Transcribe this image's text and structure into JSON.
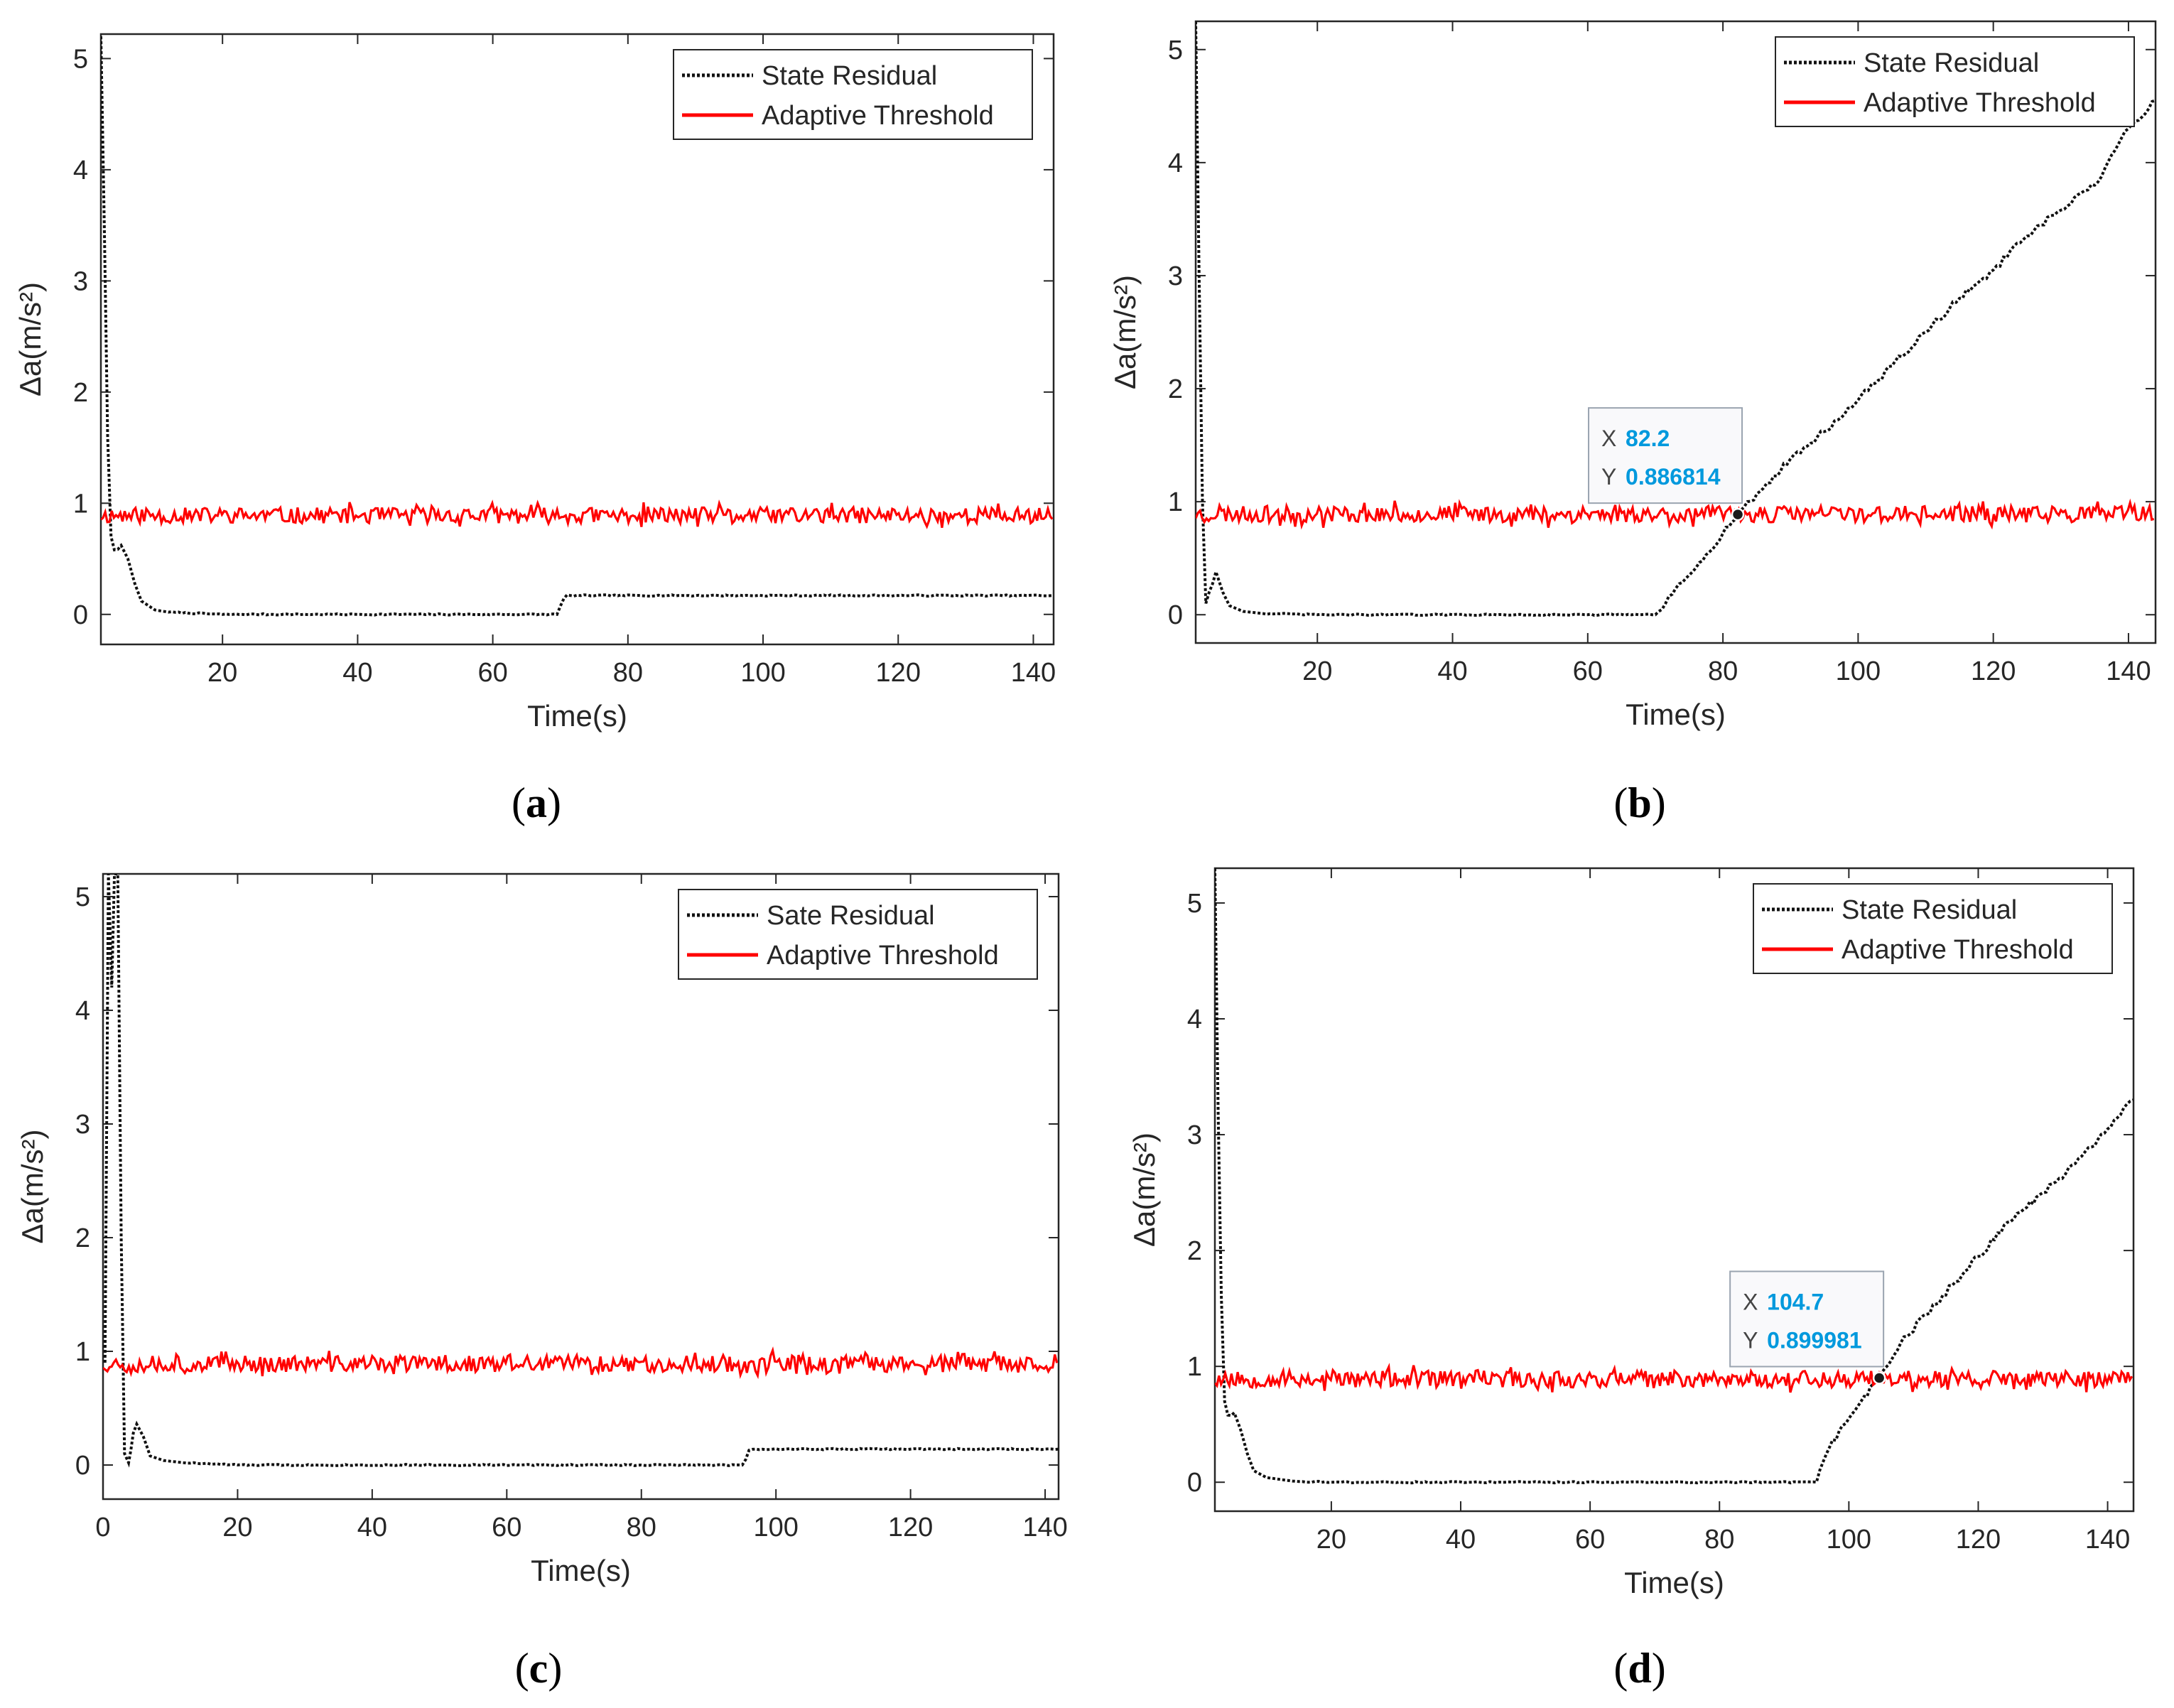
{
  "colors": {
    "residual": "#111111",
    "threshold": "#ff0000",
    "axis": "#262626",
    "datatip_value": "#0099dd"
  },
  "chart_data": [
    {
      "type": "line",
      "panel": "a",
      "caption": "a",
      "xlabel": "Time(s)",
      "ylabel": "Δa(m/s²)",
      "xlim": [
        2,
        143
      ],
      "ylim": [
        -0.27,
        5.22
      ],
      "xticks": [
        20,
        40,
        60,
        80,
        100,
        120,
        140
      ],
      "yticks": [
        0,
        1,
        2,
        3,
        4,
        5
      ],
      "legend_position": "top-right",
      "series": [
        {
          "name": "State Residual",
          "style": "dotted-black",
          "points": [
            [
              2,
              5.2
            ],
            [
              2.5,
              3.5
            ],
            [
              3,
              1.6
            ],
            [
              3.5,
              0.7
            ],
            [
              4,
              0.58
            ],
            [
              5,
              0.62
            ],
            [
              6,
              0.5
            ],
            [
              7,
              0.28
            ],
            [
              8,
              0.12
            ],
            [
              10,
              0.04
            ],
            [
              12,
              0.02
            ],
            [
              20,
              0.0
            ],
            [
              40,
              0.0
            ],
            [
              60,
              0.0
            ],
            [
              69.5,
              0.0
            ],
            [
              70.5,
              0.14
            ],
            [
              71.5,
              0.17
            ],
            [
              90,
              0.17
            ],
            [
              120,
              0.17
            ],
            [
              143,
              0.17
            ]
          ]
        },
        {
          "name": "Adaptive Threshold",
          "style": "noisy-red",
          "mean": 0.89,
          "noise": 0.12,
          "seed": 11
        }
      ]
    },
    {
      "type": "line",
      "panel": "b",
      "caption": "b",
      "xlabel": "Time(s)",
      "ylabel": "Δa(m/s²)",
      "xlim": [
        2,
        144
      ],
      "ylim": [
        -0.25,
        5.25
      ],
      "xticks": [
        20,
        40,
        60,
        80,
        100,
        120,
        140
      ],
      "yticks": [
        0,
        1,
        2,
        3,
        4,
        5
      ],
      "legend_position": "top-right",
      "series": [
        {
          "name": "State Residual",
          "style": "dotted-black",
          "points": [
            [
              2,
              5.25
            ],
            [
              2.5,
              3.0
            ],
            [
              3,
              1.0
            ],
            [
              3.5,
              0.1
            ],
            [
              4,
              0.2
            ],
            [
              5,
              0.38
            ],
            [
              6,
              0.2
            ],
            [
              7,
              0.08
            ],
            [
              9,
              0.03
            ],
            [
              12,
              0.01
            ],
            [
              20,
              0.0
            ],
            [
              40,
              0.0
            ],
            [
              60,
              0.0
            ],
            [
              70,
              0.0
            ],
            [
              75,
              0.35
            ],
            [
              80,
              0.72
            ],
            [
              82.2,
              0.886814
            ],
            [
              86,
              1.12
            ],
            [
              90,
              1.38
            ],
            [
              95,
              1.62
            ],
            [
              100,
              1.9
            ],
            [
              105,
              2.2
            ],
            [
              110,
              2.5
            ],
            [
              115,
              2.8
            ],
            [
              120,
              3.05
            ],
            [
              125,
              3.35
            ],
            [
              130,
              3.58
            ],
            [
              135,
              3.8
            ],
            [
              140,
              4.3
            ],
            [
              144,
              4.55
            ]
          ]
        },
        {
          "name": "Adaptive Threshold",
          "style": "noisy-red",
          "mean": 0.89,
          "noise": 0.12,
          "seed": 23
        }
      ],
      "datatip": {
        "x_label": "X",
        "x_value": "82.2",
        "y_label": "Y",
        "y_value": "0.886814",
        "x": 82.2,
        "y": 0.886814
      }
    },
    {
      "type": "line",
      "panel": "c",
      "caption": "c",
      "xlabel": "Time(s)",
      "ylabel": "Δa(m/s²)",
      "xlim": [
        0,
        142
      ],
      "ylim": [
        -0.3,
        5.2
      ],
      "xticks": [
        0,
        20,
        40,
        60,
        80,
        100,
        120,
        140
      ],
      "yticks": [
        0,
        1,
        2,
        3,
        4,
        5
      ],
      "legend_position": "top-right",
      "series": [
        {
          "name": "Sate Residual",
          "style": "dotted-black",
          "points": [
            [
              0.3,
              0.9
            ],
            [
              0.8,
              5.2
            ],
            [
              1.3,
              4.2
            ],
            [
              1.7,
              5.2
            ],
            [
              2.2,
              5.2
            ],
            [
              2.7,
              2.0
            ],
            [
              3.2,
              0.1
            ],
            [
              3.8,
              0.02
            ],
            [
              4.5,
              0.28
            ],
            [
              5,
              0.36
            ],
            [
              6,
              0.25
            ],
            [
              7,
              0.08
            ],
            [
              9,
              0.04
            ],
            [
              12,
              0.02
            ],
            [
              20,
              0.0
            ],
            [
              50,
              0.0
            ],
            [
              80,
              0.0
            ],
            [
              95,
              0.0
            ],
            [
              96,
              0.13
            ],
            [
              97,
              0.14
            ],
            [
              120,
              0.14
            ],
            [
              142,
              0.14
            ]
          ]
        },
        {
          "name": "Adaptive Threshold",
          "style": "noisy-red",
          "mean": 0.89,
          "noise": 0.12,
          "seed": 37
        }
      ]
    },
    {
      "type": "line",
      "panel": "d",
      "caption": "d",
      "xlabel": "Time(s)",
      "ylabel": "Δa(m/s²)",
      "xlim": [
        2,
        144
      ],
      "ylim": [
        -0.25,
        5.3
      ],
      "xticks": [
        20,
        40,
        60,
        80,
        100,
        120,
        140
      ],
      "yticks": [
        0,
        1,
        2,
        3,
        4,
        5
      ],
      "legend_position": "top-right",
      "series": [
        {
          "name": "State Residual",
          "style": "dotted-black",
          "points": [
            [
              2,
              5.3
            ],
            [
              2.5,
              3.2
            ],
            [
              3,
              1.6
            ],
            [
              3.5,
              0.7
            ],
            [
              4,
              0.58
            ],
            [
              5,
              0.6
            ],
            [
              6,
              0.45
            ],
            [
              7,
              0.25
            ],
            [
              8,
              0.1
            ],
            [
              10,
              0.04
            ],
            [
              14,
              0.01
            ],
            [
              20,
              0.0
            ],
            [
              50,
              0.0
            ],
            [
              80,
              0.0
            ],
            [
              95,
              0.0
            ],
            [
              97,
              0.3
            ],
            [
              100,
              0.55
            ],
            [
              104.7,
              0.899981
            ],
            [
              108,
              1.2
            ],
            [
              112,
              1.45
            ],
            [
              116,
              1.7
            ],
            [
              120,
              1.95
            ],
            [
              125,
              2.25
            ],
            [
              130,
              2.5
            ],
            [
              135,
              2.75
            ],
            [
              140,
              3.05
            ],
            [
              144,
              3.3
            ]
          ]
        },
        {
          "name": "Adaptive Threshold",
          "style": "noisy-red",
          "mean": 0.89,
          "noise": 0.12,
          "seed": 53
        }
      ],
      "datatip": {
        "x_label": "X",
        "x_value": "104.7",
        "y_label": "Y",
        "y_value": "0.899981",
        "x": 104.7,
        "y": 0.899981
      }
    }
  ]
}
